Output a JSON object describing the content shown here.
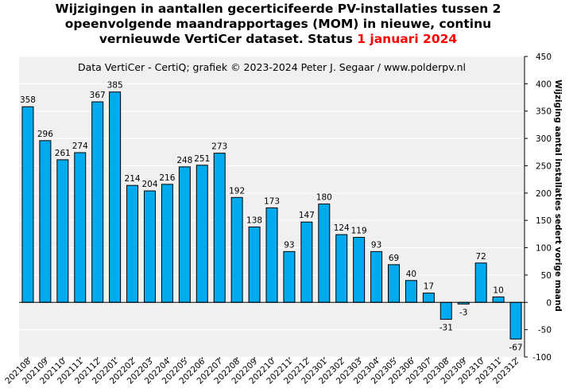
{
  "chart_data": {
    "type": "bar",
    "title_line1": "Wijzigingen in aantallen gecerticifeerde PV-installaties tussen 2",
    "title_line2": "opeenvolgende maandrapportages (MOM) in nieuwe, continu",
    "title_line3_prefix": "vernieuwde VertiCer dataset. Status ",
    "title_line3_highlight": "1 januari 2024",
    "subtitle": "Data VertiCer - CertiQ; grafiek © 2023-2024 Peter J. Segaar / www.polderpv.nl",
    "ylabel": "Wijziging aantal installaties sedert vorige maand",
    "ylim": [
      -100,
      450
    ],
    "yticks": [
      -100,
      -50,
      0,
      50,
      100,
      150,
      200,
      250,
      300,
      350,
      400,
      450
    ],
    "categories": [
      "202108",
      "202109",
      "202110",
      "202111",
      "202112",
      "202201",
      "202202",
      "202203",
      "202204",
      "202205",
      "202206",
      "202207",
      "202208",
      "202209",
      "202210",
      "202211",
      "202212",
      "202301",
      "202302",
      "202303",
      "202304",
      "202305",
      "202306",
      "202307",
      "202308",
      "202309",
      "202310",
      "202311",
      "202312"
    ],
    "values": [
      358,
      296,
      261,
      274,
      367,
      385,
      214,
      204,
      216,
      248,
      251,
      273,
      192,
      138,
      173,
      93,
      147,
      180,
      124,
      119,
      93,
      69,
      40,
      17,
      -31,
      -3,
      72,
      10,
      -67
    ],
    "bar_color": "#00aaee",
    "grid": true,
    "yaxis_position": "right"
  }
}
